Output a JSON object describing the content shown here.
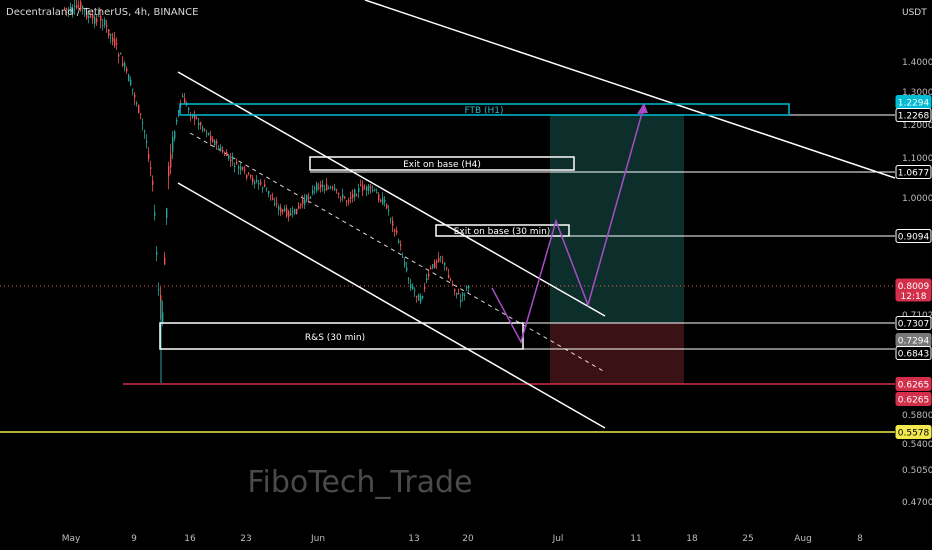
{
  "header": {
    "title": "Decentraland / TetherUS, 4h, BINANCE",
    "currency": "USDT"
  },
  "watermark": "FiboTech_Trade",
  "colors": {
    "bg": "#000000",
    "up": "#26a69a",
    "down": "#ef5350",
    "white": "#ffffff",
    "cyan": "#00bcd4",
    "magenta": "#a64dc6",
    "yellow": "#f2e94e",
    "red": "#d32f4a",
    "profit": "#0d2f2b",
    "loss": "#3a1216"
  },
  "chart_data": {
    "type": "candlestick",
    "x_ticks": [
      {
        "label": "May",
        "date": "2022-05-01"
      },
      {
        "label": "9",
        "date": "2022-05-09"
      },
      {
        "label": "16",
        "date": "2022-05-16"
      },
      {
        "label": "23",
        "date": "2022-05-23"
      },
      {
        "label": "Jun",
        "date": "2022-06-01"
      },
      {
        "label": "13",
        "date": "2022-06-13"
      },
      {
        "label": "20",
        "date": "2022-06-20"
      },
      {
        "label": "Jul",
        "date": "2022-07-01"
      },
      {
        "label": "11",
        "date": "2022-07-11"
      },
      {
        "label": "18",
        "date": "2022-07-18"
      },
      {
        "label": "25",
        "date": "2022-07-25"
      },
      {
        "label": "Aug",
        "date": "2022-08-01"
      },
      {
        "label": "8",
        "date": "2022-08-08"
      }
    ],
    "y_ticks": [
      "1.4000",
      "1.3000",
      "1.2000",
      "1.1000",
      "1.0000",
      "0.7102",
      "0.5800",
      "0.5400",
      "0.5050",
      "0.4700"
    ],
    "price_tags": [
      {
        "label": "1.2294",
        "style": "cyan"
      },
      {
        "label": "1.2268",
        "style": "outline"
      },
      {
        "label": "1.0677",
        "style": "outline"
      },
      {
        "label": "0.9094",
        "style": "outline"
      },
      {
        "label": "0.8009",
        "sub": "12:18",
        "style": "red"
      },
      {
        "label": "0.7307",
        "style": "outline"
      },
      {
        "label": "0.7294",
        "style": "gray"
      },
      {
        "label": "0.6843",
        "style": "outline"
      },
      {
        "label": "0.6265",
        "style": "red"
      },
      {
        "label": "0.6265",
        "style": "red"
      },
      {
        "label": "0.5578",
        "style": "yellow"
      }
    ],
    "annotations": [
      "FTB (H1)",
      "Exit on base (H4)",
      "Exit on base (30 min)",
      "R&S (30 min)"
    ]
  }
}
